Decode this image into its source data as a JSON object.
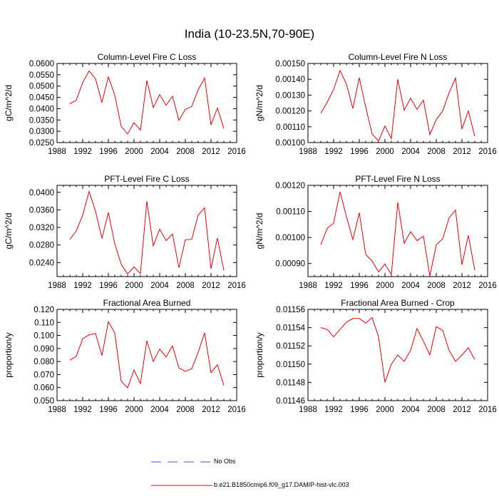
{
  "title": "India (10-23.5N,70-90E)",
  "colors": {
    "series": "#e8000b",
    "no_obs": "#4a5cc8",
    "axis": "#000000"
  },
  "legend": [
    {
      "label": "No Obs",
      "style": "dashed",
      "color": "#4a5cc8"
    },
    {
      "label": "b.e21.B1850cmip6.f09_g17.DAMIP-hist-vlc.003",
      "style": "solid",
      "color": "#e8000b"
    }
  ],
  "chart_data": [
    {
      "type": "line",
      "title": "Column-Level Fire C Loss",
      "ylabel": "gC/m^2/d",
      "xlim": [
        1988,
        2016
      ],
      "xticks": [
        "1988",
        "1992",
        "1996",
        "2000",
        "2004",
        "2008",
        "2012",
        "2016"
      ],
      "ylim": [
        0.025,
        0.06
      ],
      "yticks": [
        "0.0250",
        "0.0300",
        "0.0350",
        "0.0400",
        "0.0450",
        "0.0500",
        "0.0550",
        "0.0600"
      ],
      "x": [
        1990,
        1991,
        1992,
        1993,
        1994,
        1995,
        1996,
        1997,
        1998,
        1999,
        2000,
        2001,
        2002,
        2003,
        2004,
        2005,
        2006,
        2007,
        2008,
        2009,
        2010,
        2011,
        2012,
        2013,
        2014
      ],
      "values": [
        0.0422,
        0.0437,
        0.0515,
        0.0567,
        0.0532,
        0.0428,
        0.054,
        0.046,
        0.0322,
        0.0288,
        0.0338,
        0.0305,
        0.0525,
        0.0405,
        0.0462,
        0.0415,
        0.0455,
        0.0348,
        0.0397,
        0.041,
        0.0483,
        0.0536,
        0.0328,
        0.0403,
        0.0312
      ]
    },
    {
      "type": "line",
      "title": "Column-Level Fire N Loss",
      "ylabel": "gN/m^2/d",
      "xlim": [
        1988,
        2016
      ],
      "xticks": [
        "1988",
        "1992",
        "1996",
        "2000",
        "2004",
        "2008",
        "2012",
        "2016"
      ],
      "ylim": [
        0.001,
        0.0015
      ],
      "yticks": [
        "0.00100",
        "0.00110",
        "0.00120",
        "0.00130",
        "0.00140",
        "0.00150"
      ],
      "x": [
        1990,
        1991,
        1992,
        1993,
        1994,
        1995,
        1996,
        1997,
        1998,
        1999,
        2000,
        2001,
        2002,
        2003,
        2004,
        2005,
        2006,
        2007,
        2008,
        2009,
        2010,
        2011,
        2012,
        2013,
        2014
      ],
      "values": [
        0.001185,
        0.001255,
        0.001335,
        0.001455,
        0.00137,
        0.001215,
        0.00141,
        0.001225,
        0.001055,
        0.00101,
        0.001105,
        0.001025,
        0.0014,
        0.001205,
        0.00128,
        0.00121,
        0.001268,
        0.00105,
        0.001145,
        0.0012,
        0.001315,
        0.001408,
        0.001085,
        0.0012,
        0.00104
      ]
    },
    {
      "type": "line",
      "title": "PFT-Level Fire C Loss",
      "ylabel": "gC/m^2/d",
      "xlim": [
        1988,
        2016
      ],
      "xticks": [
        "1988",
        "1992",
        "1996",
        "2000",
        "2004",
        "2008",
        "2012",
        "2016"
      ],
      "ylim": [
        0.0208,
        0.0416
      ],
      "yticks": [
        "0.0240",
        "0.0280",
        "0.0320",
        "0.0360",
        "0.0400"
      ],
      "x": [
        1990,
        1991,
        1992,
        1993,
        1994,
        1995,
        1996,
        1997,
        1998,
        1999,
        2000,
        2001,
        2002,
        2003,
        2004,
        2005,
        2006,
        2007,
        2008,
        2009,
        2010,
        2011,
        2012,
        2013,
        2014
      ],
      "values": [
        0.0293,
        0.0312,
        0.0348,
        0.0402,
        0.0357,
        0.0295,
        0.0354,
        0.0283,
        0.0236,
        0.0214,
        0.023,
        0.0215,
        0.038,
        0.0278,
        0.0316,
        0.029,
        0.0305,
        0.0228,
        0.0292,
        0.0293,
        0.0348,
        0.0365,
        0.0226,
        0.0296,
        0.0222
      ]
    },
    {
      "type": "line",
      "title": "PFT-Level Fire N Loss",
      "ylabel": "gN/m^2/d",
      "xlim": [
        1988,
        2016
      ],
      "xticks": [
        "1988",
        "1992",
        "1996",
        "2000",
        "2004",
        "2008",
        "2012",
        "2016"
      ],
      "ylim": [
        0.00085,
        0.0012
      ],
      "yticks": [
        "0.00090",
        "0.00100",
        "0.00110",
        "0.00120"
      ],
      "x": [
        1990,
        1991,
        1992,
        1993,
        1994,
        1995,
        1996,
        1997,
        1998,
        1999,
        2000,
        2001,
        2002,
        2003,
        2004,
        2005,
        2006,
        2007,
        2008,
        2009,
        2010,
        2011,
        2012,
        2013,
        2014
      ],
      "values": [
        0.000972,
        0.001035,
        0.001055,
        0.001175,
        0.00108,
        0.000992,
        0.001095,
        0.000935,
        0.00091,
        0.000868,
        0.000898,
        0.000858,
        0.001135,
        0.000978,
        0.001022,
        0.000988,
        0.001005,
        0.000852,
        0.000972,
        0.000995,
        0.001075,
        0.001105,
        0.000895,
        0.001008,
        0.000875
      ]
    },
    {
      "type": "line",
      "title": "Fractional Area Burned",
      "ylabel": "proportion/y",
      "xlim": [
        1988,
        2016
      ],
      "xticks": [
        "1988",
        "1992",
        "1996",
        "2000",
        "2004",
        "2008",
        "2012",
        "2016"
      ],
      "ylim": [
        0.05,
        0.12
      ],
      "yticks": [
        "0.050",
        "0.060",
        "0.070",
        "0.080",
        "0.090",
        "0.100",
        "0.110",
        "0.120"
      ],
      "x": [
        1990,
        1991,
        1992,
        1993,
        1994,
        1995,
        1996,
        1997,
        1998,
        1999,
        2000,
        2001,
        2002,
        2003,
        2004,
        2005,
        2006,
        2007,
        2008,
        2009,
        2010,
        2011,
        2012,
        2013,
        2014
      ],
      "values": [
        0.081,
        0.084,
        0.0975,
        0.1005,
        0.1015,
        0.0845,
        0.1105,
        0.102,
        0.065,
        0.0598,
        0.0735,
        0.063,
        0.096,
        0.08,
        0.0895,
        0.0835,
        0.092,
        0.075,
        0.0725,
        0.0745,
        0.087,
        0.102,
        0.0715,
        0.0775,
        0.0618
      ]
    },
    {
      "type": "line",
      "title": "Fractional Area Burned - Crop",
      "ylabel": "proportion/y",
      "xlim": [
        1988,
        2016
      ],
      "xticks": [
        "1988",
        "1992",
        "1996",
        "2000",
        "2004",
        "2008",
        "2012",
        "2016"
      ],
      "ylim": [
        0.01146,
        0.01156
      ],
      "yticks": [
        "0.01146",
        "0.01148",
        "0.01150",
        "0.01152",
        "0.01154",
        "0.01156"
      ],
      "x": [
        1990,
        1991,
        1992,
        1993,
        1994,
        1995,
        1996,
        1997,
        1998,
        1999,
        2000,
        2001,
        2002,
        2003,
        2004,
        2005,
        2006,
        2007,
        2008,
        2009,
        2010,
        2011,
        2012,
        2013,
        2014
      ],
      "values": [
        0.01154,
        0.011538,
        0.01153,
        0.011538,
        0.011546,
        0.01155,
        0.01155,
        0.011545,
        0.011551,
        0.01153,
        0.01148,
        0.0115,
        0.01151,
        0.011503,
        0.011515,
        0.011539,
        0.011525,
        0.01151,
        0.011541,
        0.011537,
        0.011515,
        0.011503,
        0.01151,
        0.011518,
        0.011505
      ]
    }
  ]
}
